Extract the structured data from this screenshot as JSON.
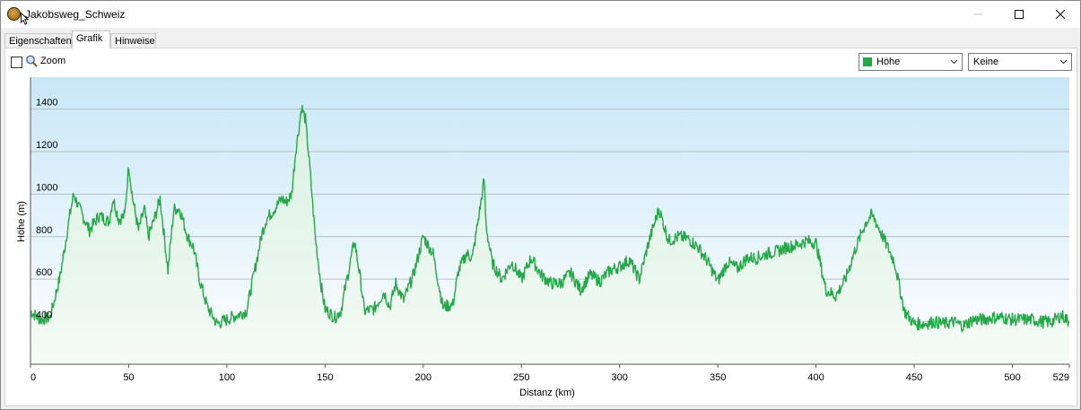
{
  "window": {
    "title": "Jakobsweg_Schweiz",
    "minimize_label": "—",
    "maximize_label": "☐",
    "close_label": "✕"
  },
  "tabs": [
    {
      "label": "Eigenschaften",
      "active": false
    },
    {
      "label": "Grafik",
      "active": true
    },
    {
      "label": "Hinweise",
      "active": false
    }
  ],
  "toolbar": {
    "zoom_label": "Zoom",
    "zoom_checked": false,
    "series_select_value": "Höhe",
    "series_select_color": "#22a845",
    "second_select_value": "Keine"
  },
  "icons": {
    "app": "app-icon",
    "zoom": "magnifier-icon",
    "dropdown": "chevron-down-icon"
  },
  "colors": {
    "line": "#22a845",
    "fill_top": "#d8f0e0",
    "bg_top": "#c9e7f7",
    "bg_bottom": "#ffffff",
    "grid": "#b8bfc6"
  },
  "chart_data": {
    "type": "area",
    "xlabel": "Distanz  (km)",
    "ylabel": "Höhe (m)",
    "xlim": [
      0,
      529
    ],
    "ylim": [
      200,
      1550
    ],
    "xticks": [
      0,
      50,
      100,
      150,
      200,
      250,
      300,
      350,
      400,
      450,
      500,
      529
    ],
    "yticks": [
      400,
      600,
      800,
      1000,
      1200,
      1400
    ],
    "grid": true,
    "legend": "none",
    "series": [
      {
        "x": [
          0,
          5,
          10,
          15,
          20,
          22,
          25,
          30,
          35,
          40,
          42,
          45,
          48,
          50,
          52,
          55,
          58,
          60,
          63,
          66,
          70,
          73,
          76,
          80,
          83,
          86,
          90,
          95,
          100,
          105,
          110,
          115,
          118,
          120,
          125,
          128,
          130,
          133,
          135,
          137,
          138,
          140,
          142,
          145,
          148,
          150,
          155,
          158,
          162,
          165,
          168,
          170,
          175,
          180,
          183,
          186,
          190,
          195,
          200,
          205,
          210,
          215,
          218,
          222,
          225,
          230,
          231,
          232,
          235,
          240,
          245,
          250,
          255,
          260,
          265,
          270,
          275,
          280,
          285,
          290,
          295,
          300,
          305,
          310,
          315,
          320,
          325,
          330,
          335,
          340,
          345,
          350,
          355,
          360,
          365,
          370,
          375,
          380,
          385,
          390,
          395,
          400,
          405,
          410,
          415,
          420,
          425,
          428,
          430,
          435,
          440,
          445,
          450,
          455,
          460,
          465,
          470,
          475,
          480,
          485,
          490,
          495,
          500,
          505,
          510,
          515,
          520,
          525,
          529
        ],
        "y": [
          450,
          410,
          420,
          610,
          900,
          1000,
          930,
          830,
          900,
          870,
          980,
          880,
          900,
          1140,
          980,
          830,
          930,
          800,
          880,
          980,
          640,
          930,
          930,
          800,
          750,
          600,
          470,
          390,
          410,
          430,
          450,
          680,
          820,
          880,
          940,
          980,
          960,
          1000,
          1200,
          1330,
          1410,
          1350,
          1150,
          800,
          570,
          460,
          420,
          450,
          640,
          780,
          600,
          450,
          460,
          540,
          470,
          580,
          500,
          620,
          800,
          720,
          470,
          480,
          640,
          720,
          700,
          1000,
          1070,
          850,
          680,
          600,
          680,
          600,
          700,
          620,
          580,
          580,
          630,
          550,
          620,
          590,
          640,
          660,
          690,
          600,
          780,
          930,
          780,
          800,
          790,
          750,
          680,
          590,
          680,
          650,
          700,
          700,
          720,
          730,
          750,
          760,
          780,
          770,
          550,
          520,
          600,
          740,
          860,
          900,
          880,
          780,
          680,
          450,
          390,
          390,
          400,
          390,
          400,
          380,
          410,
          410,
          420,
          420,
          410,
          410,
          410,
          400,
          400,
          430,
          400
        ]
      }
    ]
  }
}
